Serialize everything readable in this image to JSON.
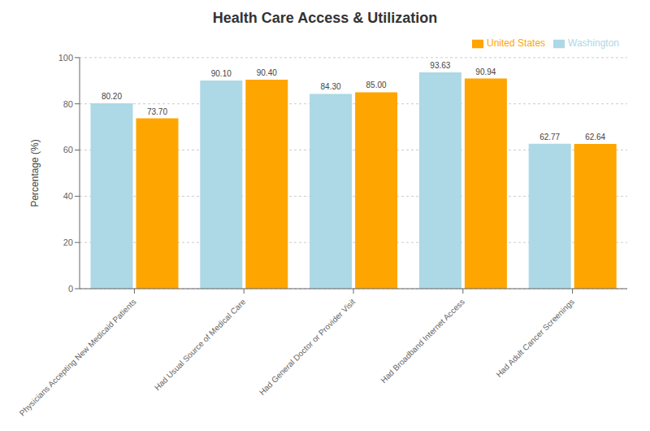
{
  "chart_data": {
    "type": "bar",
    "title": "Health Care Access & Utilization",
    "categories": [
      "Physicians Accepting New Medicaid Patients",
      "Had Usual Source of Medical Care",
      "Had General Doctor or Provider Visit",
      "Had Broadband Internet Access",
      "Had Adult Cancer Screenings"
    ],
    "series": [
      {
        "name": "Washington",
        "color": "#ADD8E6",
        "values": [
          80.2,
          90.1,
          84.3,
          93.63,
          62.77
        ],
        "value_labels": [
          "80.20",
          "90.10",
          "84.30",
          "93.63",
          "62.77"
        ]
      },
      {
        "name": "United States",
        "color": "#FFA500",
        "values": [
          73.7,
          90.4,
          85.0,
          90.94,
          62.64
        ],
        "value_labels": [
          "73.70",
          "90.40",
          "85.00",
          "90.94",
          "62.64"
        ]
      }
    ],
    "ylabel": "Percentage (%)",
    "ylim": [
      0,
      100
    ],
    "yticks": [
      0,
      20,
      40,
      60,
      80,
      100
    ],
    "grid": true,
    "legend": "upper right",
    "data_labels": true
  }
}
